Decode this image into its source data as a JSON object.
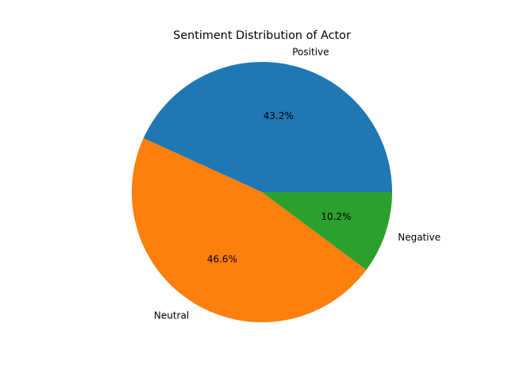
{
  "chart_data": {
    "type": "pie",
    "title": "Sentiment Distribution of Actor",
    "slices": [
      {
        "label": "Positive",
        "value": 43.2,
        "value_label": "43.2%",
        "color": "#1f77b4"
      },
      {
        "label": "Neutral",
        "value": 46.6,
        "value_label": "46.6%",
        "color": "#ff7f0e"
      },
      {
        "label": "Negative",
        "value": 10.2,
        "value_label": "10.2%",
        "color": "#2ca02c"
      }
    ],
    "start_angle": 0,
    "direction": "counterclockwise",
    "legend": "none"
  }
}
